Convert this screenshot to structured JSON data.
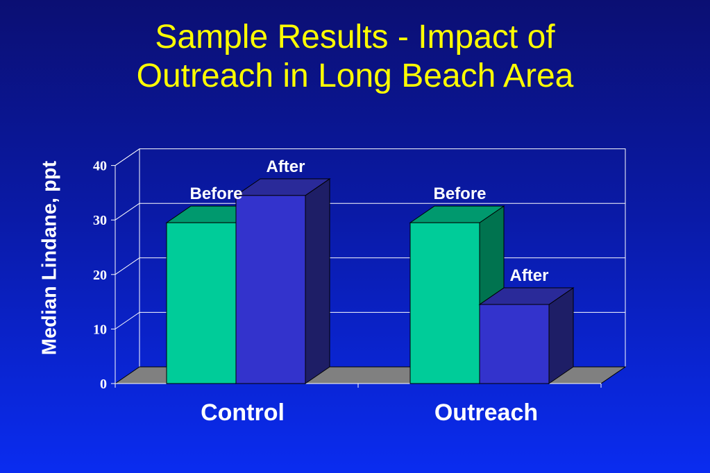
{
  "slide": {
    "title_line1": "Sample Results - Impact of",
    "title_line2": "Outreach in Long Beach Area"
  },
  "colors": {
    "background_top": "#0b0f73",
    "background_bottom": "#0a2cf0",
    "title": "#ffff00",
    "before_front": "#00cc99",
    "before_top": "#00996e",
    "before_side": "#00734f",
    "after_front": "#3333cc",
    "after_top": "#2a2a99",
    "after_side": "#1e1e66",
    "floor": "#808080",
    "axis": "#ffffff"
  },
  "chart_data": {
    "type": "bar",
    "title": "Sample Results - Impact of Outreach in Long Beach Area",
    "ylabel": "Median Lindane, ppt",
    "xlabel": "",
    "categories": [
      "Control",
      "Outreach"
    ],
    "series": [
      {
        "key": "before",
        "values": [
          29.5,
          29.5
        ],
        "labels": [
          "Before",
          "Before"
        ]
      },
      {
        "key": "after",
        "values": [
          34.5,
          14.5
        ],
        "labels": [
          "After",
          "After"
        ]
      }
    ],
    "ylim": [
      0,
      40
    ],
    "yticks": [
      "0",
      "10",
      "20",
      "30",
      "40"
    ],
    "grid": true,
    "style": "3d"
  }
}
